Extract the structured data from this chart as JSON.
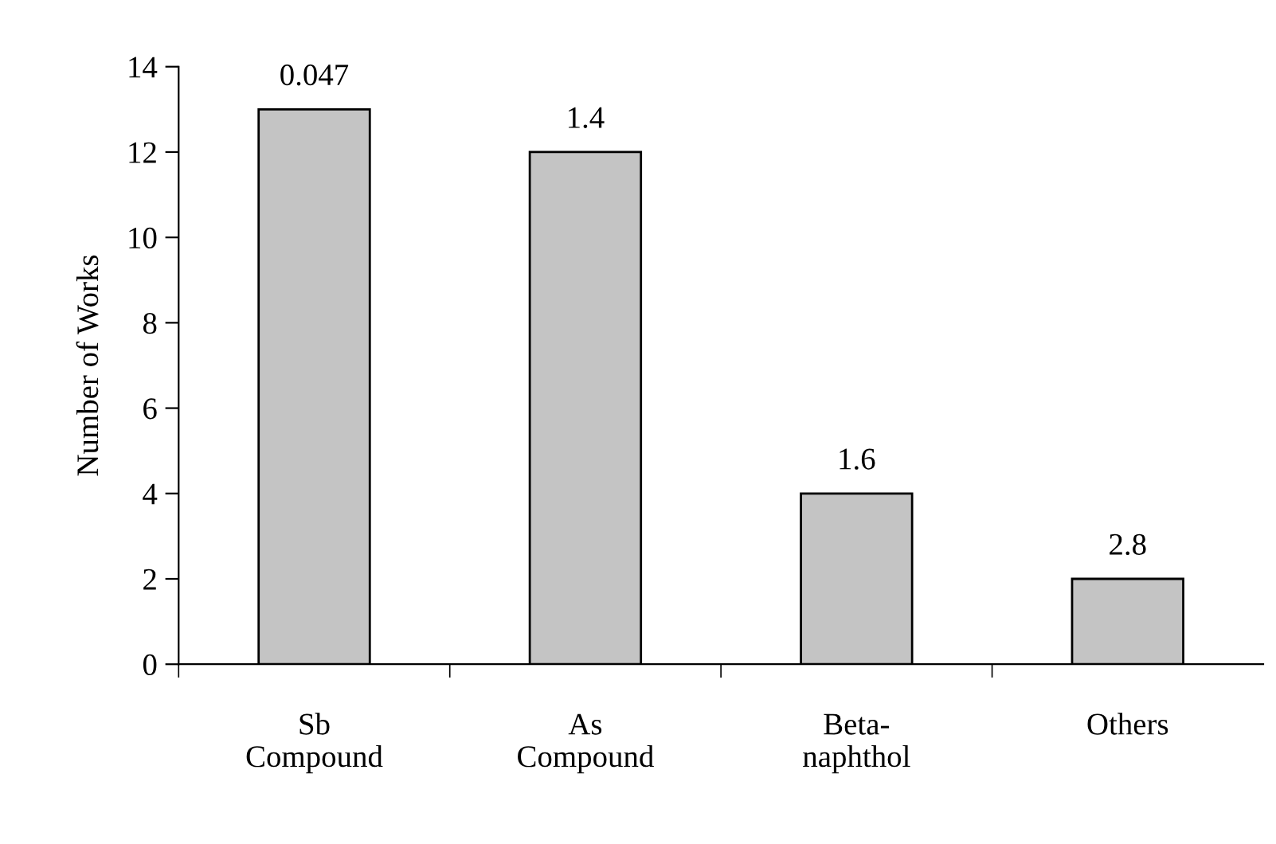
{
  "chart_data": {
    "type": "bar",
    "ylabel": "Number of Works",
    "categories": [
      "Sb\nCompound",
      "As\nCompound",
      "Beta-\nnaphthol",
      "Others"
    ],
    "values": [
      13,
      12,
      4,
      2
    ],
    "annotations": [
      {
        "text": "0.047",
        "x": "Sb\nCompound",
        "y": 13
      },
      {
        "text": "1.4",
        "x": "As\nCompound",
        "y": 12
      },
      {
        "text": "1.6",
        "x": "Beta-\nnaphthol",
        "y": 4
      },
      {
        "text": "2.8",
        "x": "Others",
        "y": 2
      }
    ],
    "color": "#c4c4c4",
    "ylim": [
      0,
      14
    ],
    "yticks": [
      0,
      2,
      4,
      6,
      8,
      10,
      12,
      14
    ],
    "grid": false,
    "legend": false
  }
}
